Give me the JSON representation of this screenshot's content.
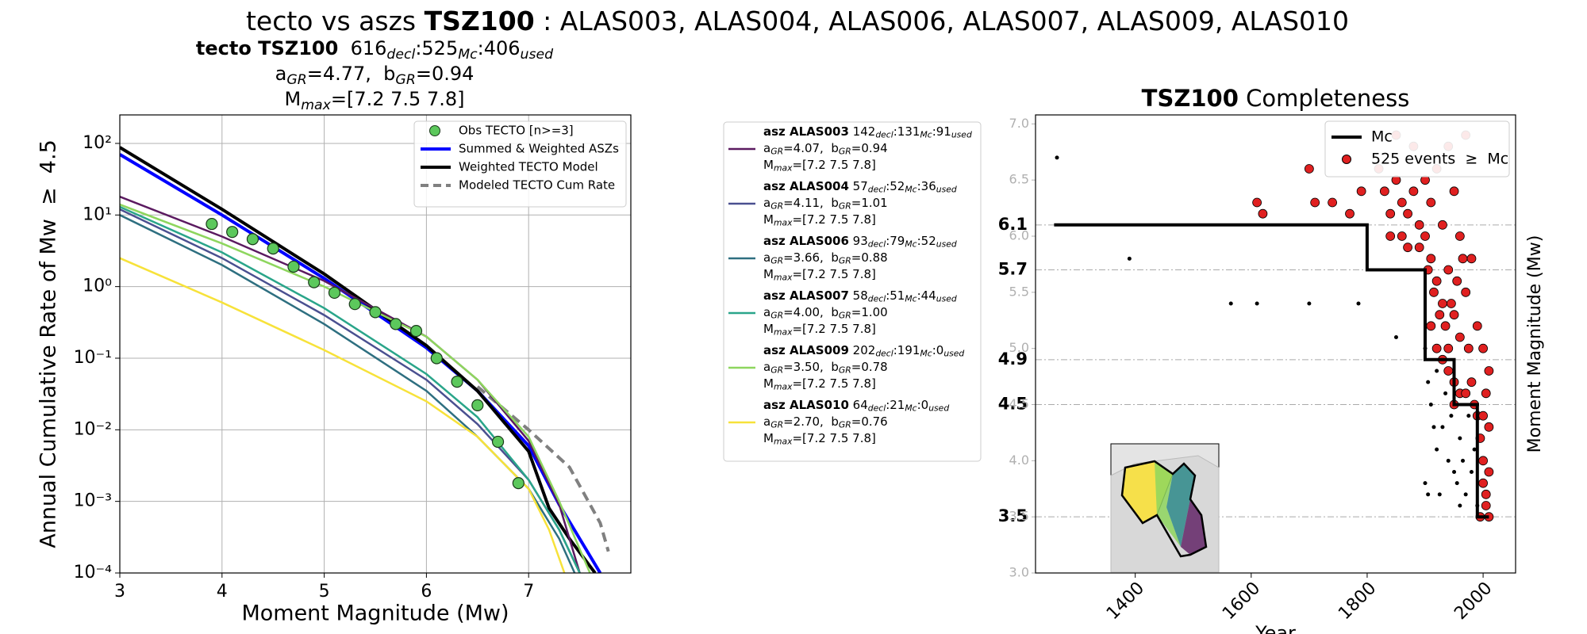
{
  "suptitle": [
    {
      "text": "tecto vs aszs "
    },
    {
      "text": "TSZ100",
      "bold": true
    },
    {
      "text": " : ALAS003, ALAS004, ALAS006, ALAS007, ALAS009, ALAS010"
    }
  ],
  "chart_data": [
    {
      "type": "line",
      "subtitle": [
        [
          {
            "text": "tecto TSZ100",
            "bold": true
          },
          {
            "text": "  616"
          },
          {
            "text": "decl",
            "sub": true
          },
          {
            "text": ":525"
          },
          {
            "text": "Mc",
            "sub": true
          },
          {
            "text": ":406"
          },
          {
            "text": "used",
            "sub": true
          }
        ],
        [
          {
            "text": "a"
          },
          {
            "text": "GR",
            "sub": true
          },
          {
            "text": "=4.77,  b"
          },
          {
            "text": "GR",
            "sub": true
          },
          {
            "text": "=0.94"
          }
        ],
        [
          {
            "text": "M"
          },
          {
            "text": "max",
            "sub": true
          },
          {
            "text": "=[7.2 7.5 7.8]"
          }
        ]
      ],
      "xlabel": "Moment Magnitude (Mw)",
      "ylabel": "Annual Cumulative Rate of Mw  ≥  4.5",
      "xlim": [
        3,
        8
      ],
      "ylim": [
        0.0001,
        250
      ],
      "log_y": true,
      "grid": true,
      "legend": "upper right",
      "xticks": [
        3,
        4,
        5,
        6,
        7
      ],
      "yticks": [
        {
          "value": 100,
          "label": "10²"
        },
        {
          "value": 10,
          "label": "10¹"
        },
        {
          "value": 1,
          "label": "10⁰"
        },
        {
          "value": 0.1,
          "label": "10⁻¹"
        },
        {
          "value": 0.01,
          "label": "10⁻²"
        },
        {
          "value": 0.001,
          "label": "10⁻³"
        },
        {
          "value": 0.0001,
          "label": "10⁻⁴"
        }
      ],
      "series": [
        {
          "name": "Obs TECTO [n>=3]",
          "style": "markers",
          "color": "#5cc85c",
          "x": [
            3.9,
            4.1,
            4.3,
            4.5,
            4.7,
            4.9,
            5.1,
            5.3,
            5.5,
            5.7,
            5.9,
            6.1,
            6.3,
            6.5,
            6.7,
            6.9
          ],
          "values": [
            7.5,
            5.8,
            4.6,
            3.4,
            1.9,
            1.15,
            0.82,
            0.57,
            0.44,
            0.3,
            0.24,
            0.1,
            0.047,
            0.022,
            0.0068,
            0.0018
          ]
        },
        {
          "name": "Summed & Weighted ASZs",
          "style": "solid",
          "color": "#0000ff",
          "x": [
            3,
            4,
            5,
            6,
            6.5,
            7,
            7.3,
            7.5,
            7.7
          ],
          "values": [
            70,
            10,
            1.3,
            0.14,
            0.035,
            0.006,
            0.0009,
            0.0003,
            0.0001
          ]
        },
        {
          "name": "Weighted TECTO Model",
          "style": "solid",
          "color": "#000000",
          "x": [
            3,
            4,
            5,
            6,
            6.5,
            7,
            7.2,
            7.4,
            7.65
          ],
          "values": [
            88,
            12,
            1.5,
            0.15,
            0.035,
            0.005,
            0.0008,
            0.0003,
            0.0001
          ]
        },
        {
          "name": "Modeled TECTO Cum Rate",
          "style": "dashed",
          "color": "#808080",
          "x": [
            6.5,
            7,
            7.4,
            7.7,
            7.78
          ],
          "values": [
            0.04,
            0.01,
            0.003,
            0.0005,
            0.0002
          ]
        },
        {
          "name": "asz ALAS003",
          "group": "asz",
          "style": "solid",
          "color": "#5b1a60",
          "x": [
            3,
            4,
            5,
            6,
            6.5,
            7,
            7.3,
            7.5
          ],
          "values": [
            18,
            5,
            1.2,
            0.2,
            0.05,
            0.007,
            0.0009,
            0.0001
          ],
          "details": [
            [
              {
                "text": " 142"
              },
              {
                "text": "decl",
                "sub": true
              },
              {
                "text": ":131"
              },
              {
                "text": "Mc",
                "sub": true
              },
              {
                "text": ":91"
              },
              {
                "text": "used",
                "sub": true
              }
            ],
            [
              {
                "text": "a"
              },
              {
                "text": "GR",
                "sub": true
              },
              {
                "text": "=4.07,  b"
              },
              {
                "text": "GR",
                "sub": true
              },
              {
                "text": "=0.94"
              }
            ],
            [
              {
                "text": "M"
              },
              {
                "text": "max",
                "sub": true
              },
              {
                "text": "=[7.2 7.5 7.8]"
              }
            ]
          ]
        },
        {
          "name": "asz ALAS004",
          "group": "asz",
          "style": "solid",
          "color": "#4a5090",
          "x": [
            3,
            4,
            5,
            6,
            6.5,
            7,
            7.3,
            7.5
          ],
          "values": [
            12,
            2.5,
            0.4,
            0.05,
            0.012,
            0.002,
            0.0004,
            0.0001
          ],
          "details": [
            [
              {
                "text": " 57"
              },
              {
                "text": "decl",
                "sub": true
              },
              {
                "text": ":52"
              },
              {
                "text": "Mc",
                "sub": true
              },
              {
                "text": ":36"
              },
              {
                "text": "used",
                "sub": true
              }
            ],
            [
              {
                "text": "a"
              },
              {
                "text": "GR",
                "sub": true
              },
              {
                "text": "=4.11,  b"
              },
              {
                "text": "GR",
                "sub": true
              },
              {
                "text": "=1.01"
              }
            ],
            [
              {
                "text": "M"
              },
              {
                "text": "max",
                "sub": true
              },
              {
                "text": "=[7.2 7.5 7.8]"
              }
            ]
          ]
        },
        {
          "name": "asz ALAS006",
          "group": "asz",
          "style": "solid",
          "color": "#2e6f80",
          "x": [
            3,
            4,
            5,
            6,
            6.5,
            7,
            7.3,
            7.45
          ],
          "values": [
            10,
            2,
            0.3,
            0.035,
            0.008,
            0.0015,
            0.0003,
            0.0001
          ],
          "details": [
            [
              {
                "text": " 93"
              },
              {
                "text": "decl",
                "sub": true
              },
              {
                "text": ":79"
              },
              {
                "text": "Mc",
                "sub": true
              },
              {
                "text": ":52"
              },
              {
                "text": "used",
                "sub": true
              }
            ],
            [
              {
                "text": "a"
              },
              {
                "text": "GR",
                "sub": true
              },
              {
                "text": "=3.66,  b"
              },
              {
                "text": "GR",
                "sub": true
              },
              {
                "text": "=0.88"
              }
            ],
            [
              {
                "text": "M"
              },
              {
                "text": "max",
                "sub": true
              },
              {
                "text": "=[7.2 7.5 7.8]"
              }
            ]
          ]
        },
        {
          "name": "asz ALAS007",
          "group": "asz",
          "style": "solid",
          "color": "#2aa58a",
          "x": [
            3,
            4,
            5,
            6,
            6.5,
            7,
            7.3,
            7.5
          ],
          "values": [
            13,
            3,
            0.5,
            0.06,
            0.015,
            0.002,
            0.0004,
            0.0001
          ],
          "details": [
            [
              {
                "text": " 58"
              },
              {
                "text": "decl",
                "sub": true
              },
              {
                "text": ":51"
              },
              {
                "text": "Mc",
                "sub": true
              },
              {
                "text": ":44"
              },
              {
                "text": "used",
                "sub": true
              }
            ],
            [
              {
                "text": "a"
              },
              {
                "text": "GR",
                "sub": true
              },
              {
                "text": "=4.00,  b"
              },
              {
                "text": "GR",
                "sub": true
              },
              {
                "text": "=1.00"
              }
            ],
            [
              {
                "text": "M"
              },
              {
                "text": "max",
                "sub": true
              },
              {
                "text": "=[7.2 7.5 7.8]"
              }
            ]
          ]
        },
        {
          "name": "asz ALAS009",
          "group": "asz",
          "style": "solid",
          "color": "#8ed65e",
          "x": [
            3,
            4,
            5,
            6,
            6.5,
            7,
            7.3,
            7.6
          ],
          "values": [
            14,
            4,
            1,
            0.2,
            0.05,
            0.008,
            0.001,
            0.0001
          ],
          "details": [
            [
              {
                "text": " 202"
              },
              {
                "text": "decl",
                "sub": true
              },
              {
                "text": ":191"
              },
              {
                "text": "Mc",
                "sub": true
              },
              {
                "text": ":0"
              },
              {
                "text": "used",
                "sub": true
              }
            ],
            [
              {
                "text": "a"
              },
              {
                "text": "GR",
                "sub": true
              },
              {
                "text": "=3.50,  b"
              },
              {
                "text": "GR",
                "sub": true
              },
              {
                "text": "=0.78"
              }
            ],
            [
              {
                "text": "M"
              },
              {
                "text": "max",
                "sub": true
              },
              {
                "text": "=[7.2 7.5 7.8]"
              }
            ]
          ]
        },
        {
          "name": "asz ALAS010",
          "group": "asz",
          "style": "solid",
          "color": "#f7e23a",
          "x": [
            3,
            4,
            5,
            6,
            6.5,
            7,
            7.2,
            7.35
          ],
          "values": [
            2.5,
            0.6,
            0.13,
            0.025,
            0.008,
            0.0015,
            0.0004,
            0.0001
          ],
          "details": [
            [
              {
                "text": " 64"
              },
              {
                "text": "decl",
                "sub": true
              },
              {
                "text": ":21"
              },
              {
                "text": "Mc",
                "sub": true
              },
              {
                "text": ":0"
              },
              {
                "text": "used",
                "sub": true
              }
            ],
            [
              {
                "text": "a"
              },
              {
                "text": "GR",
                "sub": true
              },
              {
                "text": "=2.70,  b"
              },
              {
                "text": "GR",
                "sub": true
              },
              {
                "text": "=0.76"
              }
            ],
            [
              {
                "text": "M"
              },
              {
                "text": "max",
                "sub": true
              },
              {
                "text": "=[7.2 7.5 7.8]"
              }
            ]
          ]
        }
      ]
    },
    {
      "type": "scatter",
      "title": [
        {
          "text": "TSZ100",
          "bold": true
        },
        {
          "text": " Completeness"
        }
      ],
      "xlabel": "Year",
      "ylabel": "Moment Magnitude (Mw)",
      "xlim": [
        1228,
        2056
      ],
      "ylim": [
        3.0,
        7.08
      ],
      "xticks": [
        1400,
        1600,
        1800,
        2000
      ],
      "yticks": [
        {
          "value": 3,
          "label": "3.0"
        },
        3.5,
        {
          "value": 4,
          "label": "4.0"
        },
        4.5,
        {
          "value": 5,
          "label": "5.0"
        },
        5.5,
        {
          "value": 6,
          "label": "6.0"
        },
        6.5,
        {
          "value": 7,
          "label": "7.0"
        }
      ],
      "ytick_color": "#b0b0b0",
      "mc_ticks": [
        3.5,
        4.5,
        4.9,
        5.7,
        6.1
      ],
      "legend": "upper right",
      "series": [
        {
          "name": "Mc",
          "style": "step",
          "color": "#000000",
          "x": [
            1260,
            1800,
            1800,
            1900,
            1900,
            1950,
            1950,
            1990,
            1990,
            2010
          ],
          "values": [
            6.1,
            6.1,
            5.7,
            5.7,
            4.9,
            4.9,
            4.5,
            4.5,
            3.5,
            3.5
          ]
        },
        {
          "name": "525 events  ≥  Mc",
          "style": "markers",
          "color": "#e02020",
          "x": [
            1700,
            1710,
            1740,
            1770,
            1620,
            1610,
            1790,
            1820,
            1830,
            1840,
            1840,
            1850,
            1850,
            1860,
            1860,
            1870,
            1870,
            1880,
            1880,
            1890,
            1890,
            1900,
            1900,
            1910,
            1910,
            1910,
            1920,
            1920,
            1920,
            1930,
            1930,
            1930,
            1940,
            1940,
            1940,
            1940,
            1950,
            1950,
            1950,
            1950,
            1960,
            1960,
            1960,
            1970,
            1970,
            1970,
            1975,
            1980,
            1980,
            1985,
            1990,
            1995,
            2000,
            2000,
            2000,
            2005,
            2005,
            2010,
            2010,
            2010,
            2010,
            1995,
            2005,
            2000,
            1990,
            1965,
            1955,
            1945,
            1935,
            1925,
            1915,
            1905
          ],
          "values": [
            6.6,
            6.3,
            6.3,
            6.2,
            6.2,
            6.3,
            6.4,
            6.6,
            6.4,
            6.2,
            6.0,
            6.5,
            6.9,
            6.3,
            6.0,
            6.2,
            5.9,
            6.4,
            6.8,
            6.1,
            5.9,
            6.5,
            6.0,
            6.3,
            5.8,
            5.2,
            6.6,
            5.6,
            5.0,
            6.1,
            5.4,
            4.9,
            6.8,
            5.7,
            5.0,
            4.8,
            6.4,
            5.3,
            4.7,
            4.5,
            6.0,
            5.1,
            4.6,
            6.9,
            5.5,
            4.6,
            5.0,
            5.8,
            4.7,
            4.5,
            4.4,
            4.2,
            5.0,
            4.0,
            3.8,
            4.6,
            3.6,
            4.8,
            4.3,
            3.9,
            3.5,
            3.5,
            3.7,
            4.4,
            5.2,
            5.8,
            5.6,
            5.4,
            5.2,
            5.3,
            5.5,
            5.7
          ]
        },
        {
          "style": "dots",
          "color": "#000000",
          "x": [
            1265,
            1390,
            1565,
            1610,
            1700,
            1785,
            1850,
            1900,
            1905,
            1910,
            1915,
            1920,
            1900,
            1905,
            1925,
            1930,
            1940,
            1950,
            1955,
            1960,
            1965,
            1970,
            1975,
            1980,
            1985,
            1990,
            1920,
            1935,
            1945,
            1960
          ],
          "values": [
            6.7,
            5.8,
            5.4,
            5.4,
            5.4,
            5.4,
            5.1,
            5.0,
            4.7,
            4.5,
            4.3,
            4.1,
            3.8,
            3.7,
            3.7,
            4.3,
            4.0,
            3.9,
            3.8,
            4.2,
            4.0,
            3.7,
            4.4,
            3.9,
            4.1,
            3.6,
            4.8,
            4.6,
            4.4,
            3.6
          ]
        }
      ]
    }
  ]
}
